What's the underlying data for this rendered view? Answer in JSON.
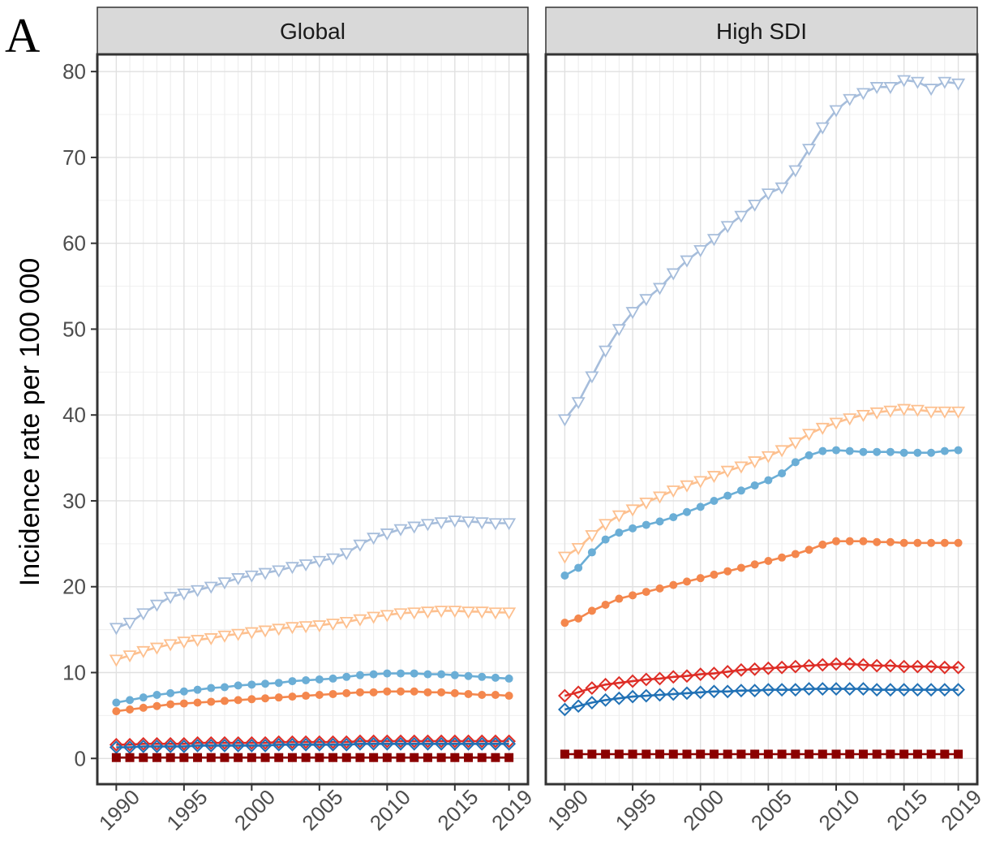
{
  "panel_letter": "A",
  "chart_data": {
    "type": "line",
    "ylabel": "Incidence rate per 100 000",
    "xlabel": "",
    "ylim": [
      -3,
      82
    ],
    "xlim": [
      1988.6,
      2020.4
    ],
    "y_ticks": [
      0,
      10,
      20,
      30,
      40,
      50,
      60,
      70,
      80
    ],
    "y_tick_labels": [
      "0",
      "10",
      "20",
      "30",
      "40",
      "50",
      "60",
      "70",
      "80"
    ],
    "x_ticks": [
      1990,
      1995,
      2000,
      2005,
      2010,
      2015,
      2019
    ],
    "x_tick_labels": [
      "1990",
      "1995",
      "2000",
      "2005",
      "2010",
      "2015",
      "2019"
    ],
    "grid": true,
    "legend": "none",
    "years": [
      1990,
      1991,
      1992,
      1993,
      1994,
      1995,
      1996,
      1997,
      1998,
      1999,
      2000,
      2001,
      2002,
      2003,
      2004,
      2005,
      2006,
      2007,
      2008,
      2009,
      2010,
      2011,
      2012,
      2013,
      2014,
      2015,
      2016,
      2017,
      2018,
      2019
    ],
    "panels": [
      {
        "title": "Global",
        "series": [
          {
            "color": "#a6bddb",
            "marker": "triangle-down",
            "values": [
              15.2,
              15.8,
              16.9,
              17.9,
              18.8,
              19.2,
              19.6,
              20.0,
              20.5,
              21.0,
              21.3,
              21.6,
              21.9,
              22.3,
              22.6,
              23.0,
              23.3,
              23.9,
              24.9,
              25.7,
              26.2,
              26.7,
              27.0,
              27.3,
              27.5,
              27.7,
              27.6,
              27.5,
              27.4,
              27.4
            ]
          },
          {
            "color": "#fdc08f",
            "marker": "triangle-down",
            "values": [
              11.5,
              12.0,
              12.5,
              12.9,
              13.3,
              13.6,
              13.8,
              14.0,
              14.3,
              14.5,
              14.7,
              14.9,
              15.1,
              15.3,
              15.4,
              15.5,
              15.7,
              15.9,
              16.2,
              16.5,
              16.7,
              16.9,
              17.0,
              17.1,
              17.2,
              17.2,
              17.1,
              17.1,
              17.0,
              17.0
            ]
          },
          {
            "color": "#6baed6",
            "marker": "circle",
            "values": [
              6.5,
              6.8,
              7.1,
              7.4,
              7.6,
              7.8,
              8.0,
              8.2,
              8.3,
              8.5,
              8.6,
              8.7,
              8.8,
              9.0,
              9.1,
              9.2,
              9.3,
              9.5,
              9.7,
              9.8,
              9.9,
              9.9,
              9.9,
              9.8,
              9.8,
              9.7,
              9.6,
              9.5,
              9.4,
              9.3
            ]
          },
          {
            "color": "#f4874d",
            "marker": "circle",
            "values": [
              5.5,
              5.7,
              5.9,
              6.1,
              6.3,
              6.4,
              6.5,
              6.6,
              6.7,
              6.8,
              6.9,
              7.0,
              7.1,
              7.2,
              7.3,
              7.4,
              7.5,
              7.6,
              7.7,
              7.7,
              7.8,
              7.8,
              7.8,
              7.7,
              7.7,
              7.6,
              7.5,
              7.4,
              7.4,
              7.3
            ]
          },
          {
            "color": "#de2d26",
            "marker": "diamond",
            "values": [
              1.6,
              1.6,
              1.7,
              1.7,
              1.7,
              1.7,
              1.8,
              1.8,
              1.8,
              1.8,
              1.8,
              1.8,
              1.9,
              1.9,
              1.9,
              1.9,
              1.9,
              1.9,
              2.0,
              2.0,
              2.0,
              2.0,
              2.0,
              2.0,
              2.0,
              2.0,
              2.0,
              2.0,
              2.0,
              2.0
            ]
          },
          {
            "color": "#2171b5",
            "marker": "diamond",
            "values": [
              1.3,
              1.3,
              1.4,
              1.4,
              1.4,
              1.4,
              1.5,
              1.5,
              1.5,
              1.5,
              1.5,
              1.5,
              1.6,
              1.6,
              1.6,
              1.6,
              1.6,
              1.6,
              1.7,
              1.7,
              1.7,
              1.7,
              1.7,
              1.7,
              1.7,
              1.7,
              1.7,
              1.7,
              1.7,
              1.7
            ]
          },
          {
            "color": "#8b0000",
            "marker": "square",
            "values": [
              0.1,
              0.1,
              0.1,
              0.1,
              0.1,
              0.1,
              0.1,
              0.1,
              0.1,
              0.1,
              0.1,
              0.1,
              0.1,
              0.1,
              0.1,
              0.1,
              0.1,
              0.1,
              0.1,
              0.1,
              0.1,
              0.1,
              0.1,
              0.1,
              0.1,
              0.1,
              0.1,
              0.1,
              0.1,
              0.1
            ]
          }
        ]
      },
      {
        "title": "High SDI",
        "series": [
          {
            "color": "#a6bddb",
            "marker": "triangle-down",
            "values": [
              39.5,
              41.5,
              44.5,
              47.5,
              50.0,
              52.0,
              53.5,
              54.8,
              56.5,
              58.0,
              59.2,
              60.5,
              62.0,
              63.2,
              64.5,
              65.8,
              66.5,
              68.5,
              71.0,
              73.5,
              75.5,
              76.8,
              77.5,
              78.2,
              78.2,
              79.0,
              78.8,
              78.0,
              78.8,
              78.6
            ]
          },
          {
            "color": "#fdc08f",
            "marker": "triangle-down",
            "values": [
              23.5,
              24.5,
              26.0,
              27.3,
              28.3,
              29.0,
              29.8,
              30.5,
              31.2,
              31.8,
              32.3,
              32.9,
              33.5,
              34.0,
              34.6,
              35.2,
              35.9,
              36.8,
              37.8,
              38.5,
              39.1,
              39.6,
              40.0,
              40.3,
              40.5,
              40.7,
              40.6,
              40.4,
              40.4,
              40.4
            ]
          },
          {
            "color": "#6baed6",
            "marker": "circle",
            "values": [
              21.3,
              22.2,
              24.0,
              25.5,
              26.3,
              26.8,
              27.2,
              27.6,
              28.1,
              28.7,
              29.3,
              30.0,
              30.6,
              31.2,
              31.8,
              32.4,
              33.2,
              34.5,
              35.3,
              35.8,
              35.9,
              35.8,
              35.7,
              35.7,
              35.7,
              35.6,
              35.6,
              35.6,
              35.8,
              35.9
            ]
          },
          {
            "color": "#f4874d",
            "marker": "circle",
            "values": [
              15.8,
              16.3,
              17.2,
              17.9,
              18.6,
              19.0,
              19.4,
              19.8,
              20.2,
              20.6,
              21.0,
              21.4,
              21.8,
              22.2,
              22.6,
              23.0,
              23.4,
              23.8,
              24.3,
              24.9,
              25.3,
              25.3,
              25.3,
              25.2,
              25.2,
              25.1,
              25.1,
              25.1,
              25.1,
              25.1
            ]
          },
          {
            "color": "#de2d26",
            "marker": "diamond",
            "values": [
              7.3,
              7.7,
              8.2,
              8.6,
              8.8,
              9.0,
              9.2,
              9.3,
              9.5,
              9.6,
              9.8,
              9.9,
              10.1,
              10.3,
              10.4,
              10.5,
              10.6,
              10.7,
              10.8,
              10.9,
              11.0,
              11.0,
              10.9,
              10.8,
              10.8,
              10.7,
              10.7,
              10.7,
              10.6,
              10.6
            ]
          },
          {
            "color": "#2171b5",
            "marker": "diamond",
            "values": [
              5.7,
              6.1,
              6.5,
              6.8,
              7.0,
              7.2,
              7.3,
              7.4,
              7.5,
              7.6,
              7.7,
              7.8,
              7.8,
              7.9,
              7.9,
              8.0,
              8.0,
              8.0,
              8.1,
              8.1,
              8.1,
              8.1,
              8.1,
              8.0,
              8.0,
              8.0,
              8.0,
              8.0,
              8.0,
              8.0
            ]
          },
          {
            "color": "#8b0000",
            "marker": "square",
            "values": [
              0.5,
              0.5,
              0.5,
              0.5,
              0.5,
              0.5,
              0.5,
              0.5,
              0.5,
              0.5,
              0.5,
              0.5,
              0.5,
              0.5,
              0.5,
              0.5,
              0.5,
              0.5,
              0.5,
              0.5,
              0.5,
              0.5,
              0.5,
              0.5,
              0.5,
              0.5,
              0.5,
              0.5,
              0.5,
              0.5
            ]
          }
        ]
      }
    ]
  }
}
